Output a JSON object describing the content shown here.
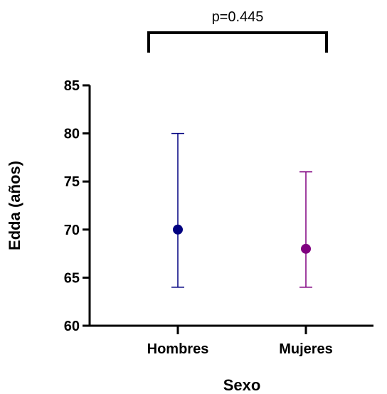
{
  "chart_data": {
    "type": "scatter",
    "title": "",
    "xlabel": "Sexo",
    "ylabel": "Edda (años)",
    "categories": [
      "Hombres",
      "Mujeres"
    ],
    "ylim": [
      60,
      85
    ],
    "yticks": [
      60,
      65,
      70,
      75,
      80,
      85
    ],
    "grid": false,
    "series": [
      {
        "category": "Hombres",
        "value": 70,
        "lower": 64,
        "upper": 80,
        "color": "#000080"
      },
      {
        "category": "Mujeres",
        "value": 68,
        "lower": 64,
        "upper": 76,
        "color": "#800080"
      }
    ],
    "annotations": [
      {
        "text": "p=0.445",
        "type": "significance-bracket",
        "between": [
          "Hombres",
          "Mujeres"
        ]
      }
    ]
  }
}
